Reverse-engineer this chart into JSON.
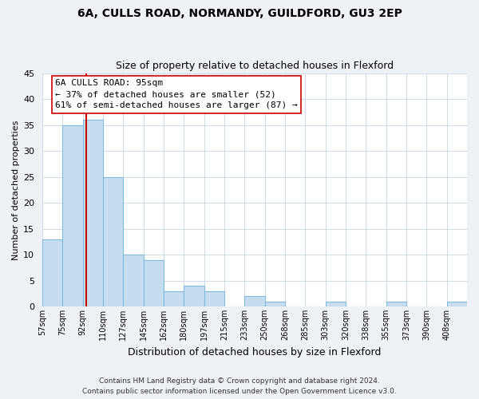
{
  "title": "6A, CULLS ROAD, NORMANDY, GUILDFORD, GU3 2EP",
  "subtitle": "Size of property relative to detached houses in Flexford",
  "xlabel": "Distribution of detached houses by size in Flexford",
  "ylabel": "Number of detached properties",
  "bin_labels": [
    "57sqm",
    "75sqm",
    "92sqm",
    "110sqm",
    "127sqm",
    "145sqm",
    "162sqm",
    "180sqm",
    "197sqm",
    "215sqm",
    "233sqm",
    "250sqm",
    "268sqm",
    "285sqm",
    "303sqm",
    "320sqm",
    "338sqm",
    "355sqm",
    "373sqm",
    "390sqm",
    "408sqm"
  ],
  "bar_heights": [
    13,
    35,
    36,
    25,
    10,
    9,
    3,
    4,
    3,
    0,
    2,
    1,
    0,
    0,
    1,
    0,
    0,
    1,
    0,
    0,
    1
  ],
  "bar_color": "#c6ddf0",
  "bar_edge_color": "#7fb9dd",
  "highlight_line_color": "#cc0000",
  "ylim": [
    0,
    45
  ],
  "yticks": [
    0,
    5,
    10,
    15,
    20,
    25,
    30,
    35,
    40,
    45
  ],
  "annotation_line1": "6A CULLS ROAD: 95sqm",
  "annotation_line2": "← 37% of detached houses are smaller (52)",
  "annotation_line3": "61% of semi-detached houses are larger (87) →",
  "footer_line1": "Contains HM Land Registry data © Crown copyright and database right 2024.",
  "footer_line2": "Contains public sector information licensed under the Open Government Licence v3.0.",
  "bg_color": "#eef2f7",
  "plot_bg_color": "#ffffff",
  "grid_color": "#ccdaeb"
}
